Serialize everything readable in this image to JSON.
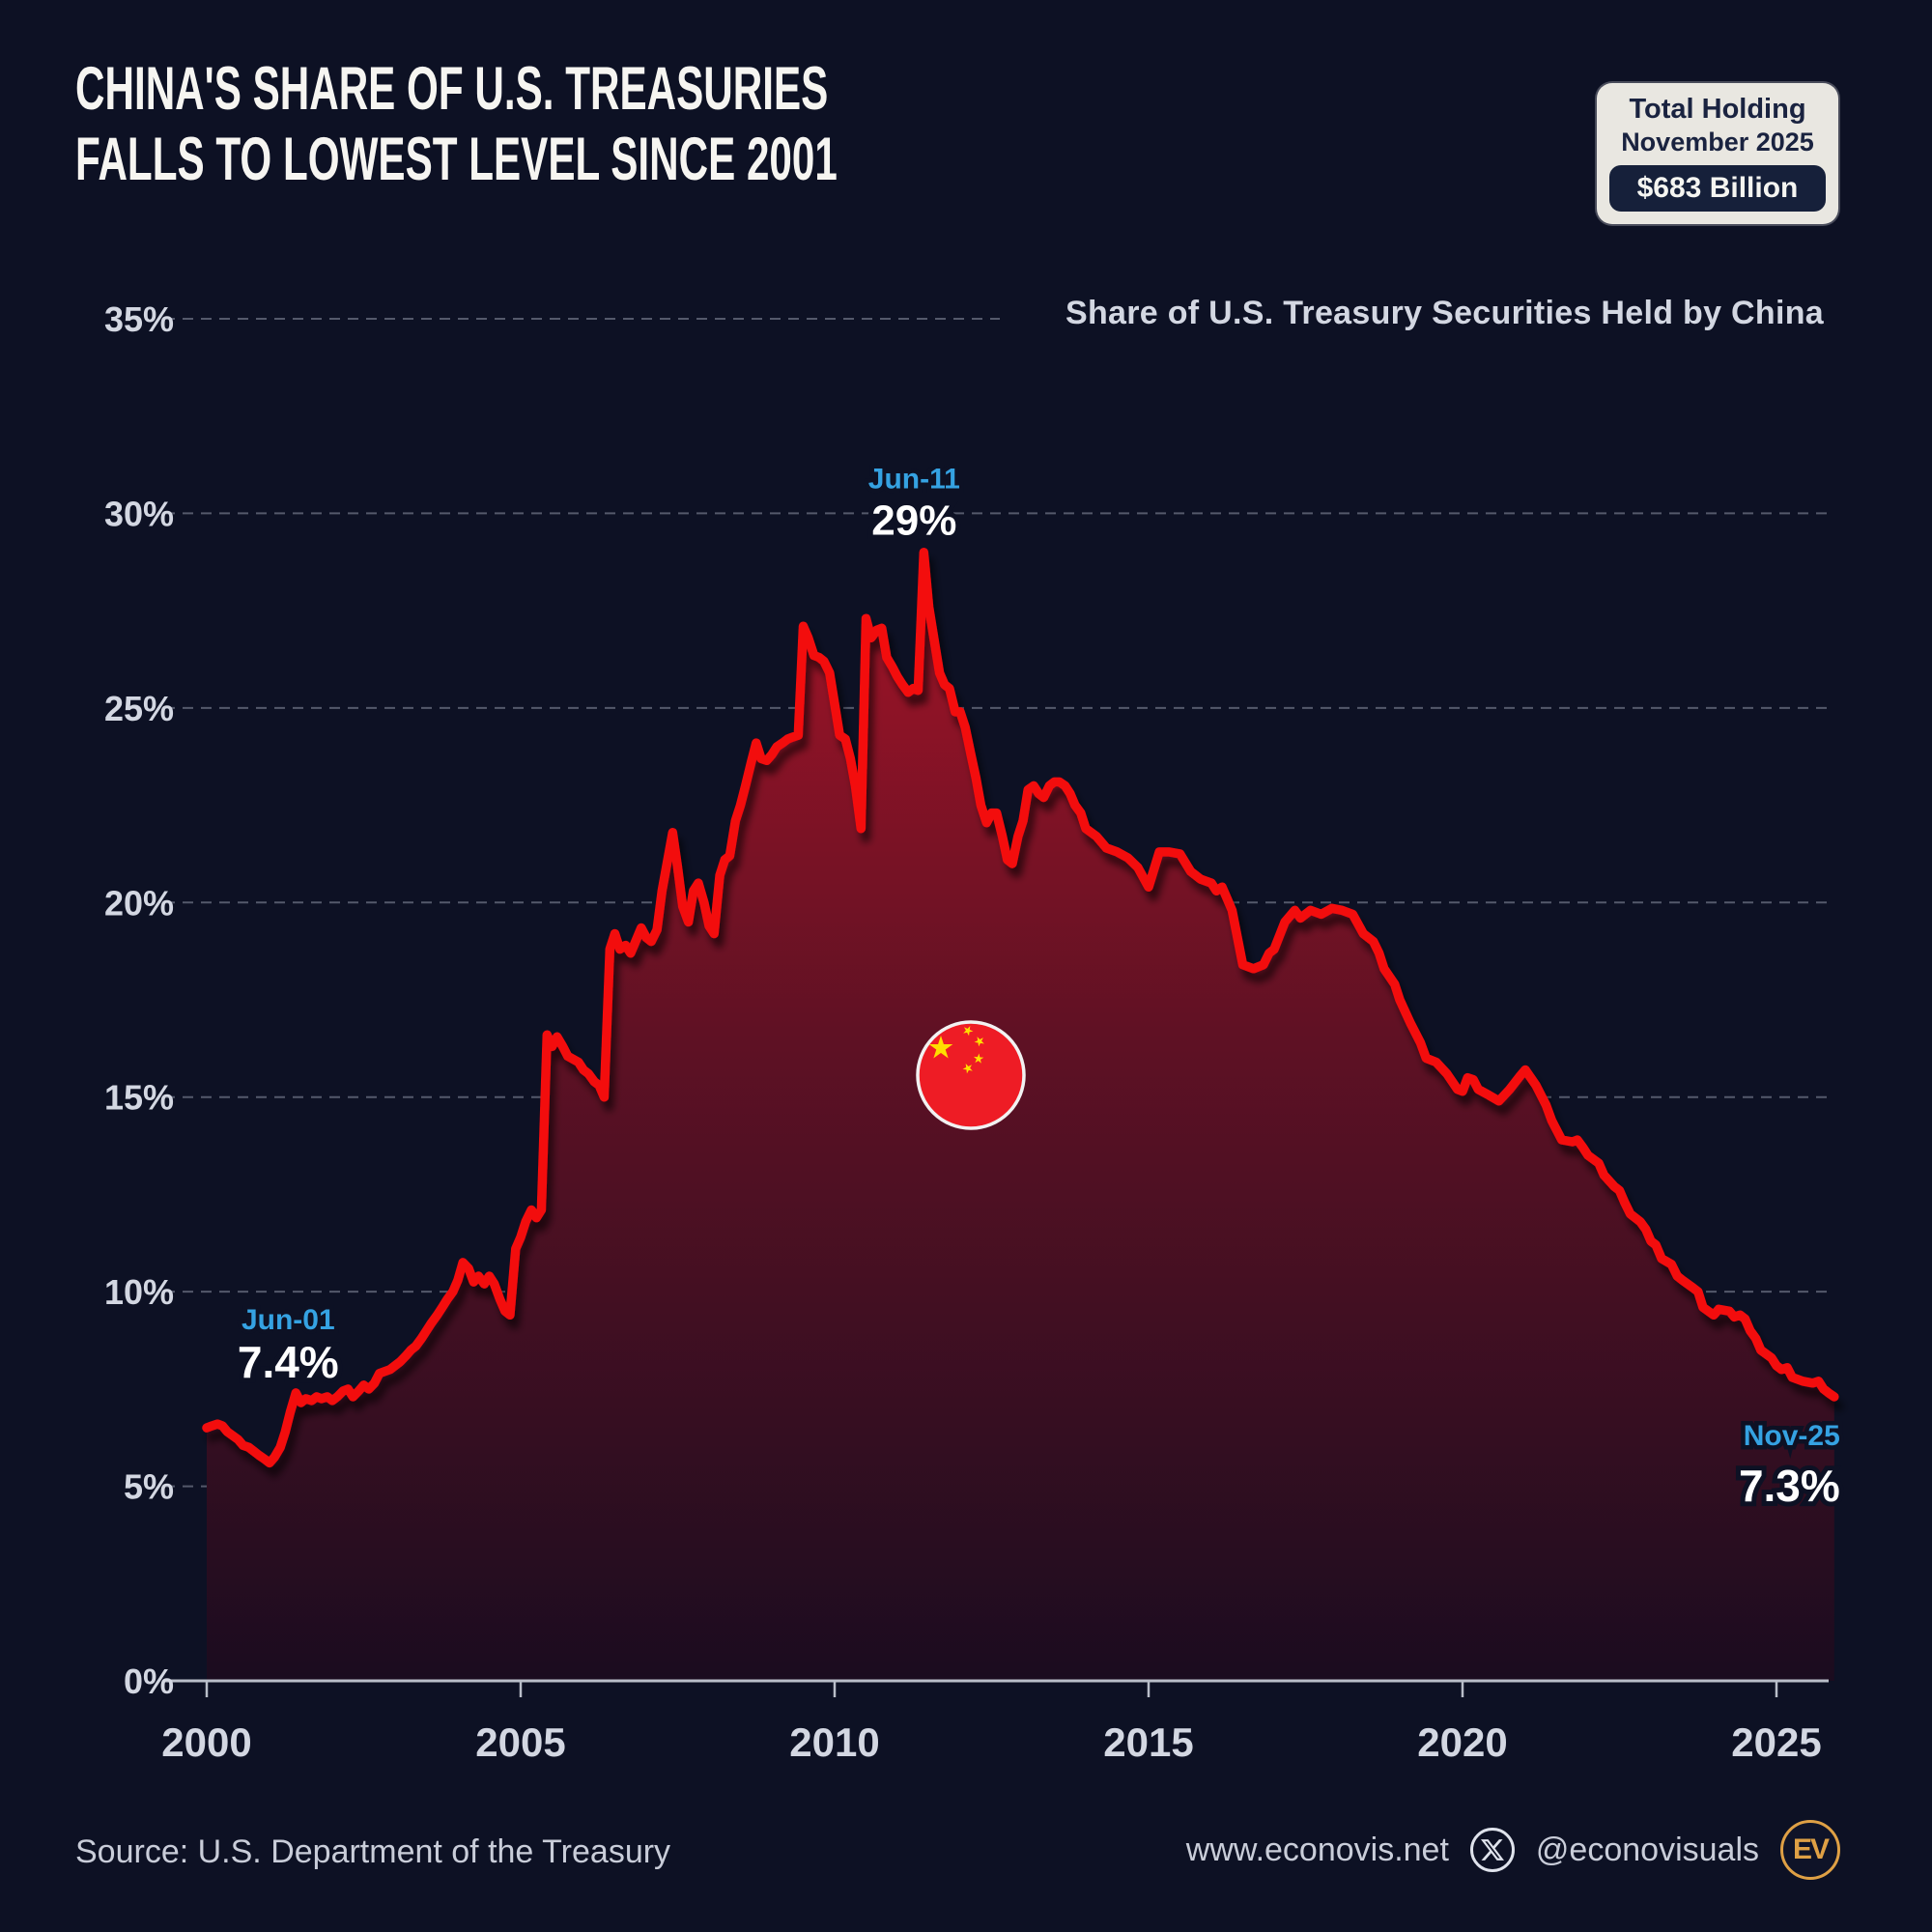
{
  "header": {
    "title_line1": "CHINA'S SHARE OF U.S. TREASURIES",
    "title_line2": "FALLS TO LOWEST LEVEL SINCE 2001",
    "badge": {
      "line1": "Total Holding",
      "line2": "November 2025",
      "value": "$683 Billion"
    }
  },
  "colors": {
    "background": "#0d1124",
    "line_red": "#f3090f",
    "area_top": "#a81427",
    "area_mid": "#5e1124",
    "area_bottom": "#1a0c1f",
    "accent_blue": "#35a2e2",
    "grid_gray": "#9aa0b2",
    "axis_gray": "#b9bec9",
    "gold": "#dfa045",
    "flag_red": "#ee1c25",
    "flag_yellow": "#ffde00",
    "text_bright": "#f6f5f1",
    "text_dim": "#d3d7e2"
  },
  "chart_data": {
    "type": "area",
    "title": "Share of U.S. Treasury Securities Held by China",
    "xlabel": "",
    "ylabel": "",
    "xlim": [
      2000,
      2026
    ],
    "ylim": [
      0,
      35
    ],
    "grid": "dashed-horizontal",
    "y_ticks": [
      "0%",
      "5%",
      "10%",
      "15%",
      "20%",
      "25%",
      "30%",
      "35%"
    ],
    "x_ticks": [
      "2000",
      "2005",
      "2010",
      "2015",
      "2020",
      "2025"
    ],
    "x_tick_years": [
      2000,
      2005,
      2010,
      2015,
      2020,
      2025
    ],
    "annotations": [
      {
        "label": "Jun-01",
        "value": "7.4%",
        "year": 2001.42,
        "y": 7.4
      },
      {
        "label": "Jun-11",
        "value": "29%",
        "year": 2011.42,
        "y": 29
      },
      {
        "label": "Nov-25",
        "value": "7.3%",
        "year": 2025.92,
        "y": 7.3
      }
    ],
    "series": [
      [
        2000.0,
        6.5
      ],
      [
        2000.08,
        6.55
      ],
      [
        2000.17,
        6.6
      ],
      [
        2000.25,
        6.55
      ],
      [
        2000.33,
        6.4
      ],
      [
        2000.5,
        6.2
      ],
      [
        2000.58,
        6.05
      ],
      [
        2000.67,
        6.0
      ],
      [
        2000.75,
        5.9
      ],
      [
        2000.83,
        5.8
      ],
      [
        2000.92,
        5.7
      ],
      [
        2001.0,
        5.6
      ],
      [
        2001.08,
        5.75
      ],
      [
        2001.17,
        6.0
      ],
      [
        2001.25,
        6.4
      ],
      [
        2001.33,
        6.9
      ],
      [
        2001.42,
        7.4
      ],
      [
        2001.5,
        7.15
      ],
      [
        2001.58,
        7.25
      ],
      [
        2001.67,
        7.2
      ],
      [
        2001.75,
        7.3
      ],
      [
        2001.83,
        7.25
      ],
      [
        2001.92,
        7.3
      ],
      [
        2002.0,
        7.2
      ],
      [
        2002.08,
        7.3
      ],
      [
        2002.17,
        7.45
      ],
      [
        2002.25,
        7.5
      ],
      [
        2002.33,
        7.3
      ],
      [
        2002.42,
        7.45
      ],
      [
        2002.5,
        7.6
      ],
      [
        2002.58,
        7.5
      ],
      [
        2002.67,
        7.65
      ],
      [
        2002.75,
        7.9
      ],
      [
        2002.92,
        8.0
      ],
      [
        2003.08,
        8.2
      ],
      [
        2003.17,
        8.35
      ],
      [
        2003.25,
        8.5
      ],
      [
        2003.33,
        8.6
      ],
      [
        2003.42,
        8.8
      ],
      [
        2003.5,
        9.0
      ],
      [
        2003.58,
        9.2
      ],
      [
        2003.67,
        9.4
      ],
      [
        2003.75,
        9.6
      ],
      [
        2003.83,
        9.8
      ],
      [
        2003.92,
        10.0
      ],
      [
        2004.0,
        10.3
      ],
      [
        2004.08,
        10.75
      ],
      [
        2004.17,
        10.6
      ],
      [
        2004.25,
        10.25
      ],
      [
        2004.33,
        10.4
      ],
      [
        2004.42,
        10.2
      ],
      [
        2004.5,
        10.4
      ],
      [
        2004.58,
        10.2
      ],
      [
        2004.67,
        9.8
      ],
      [
        2004.75,
        9.5
      ],
      [
        2004.83,
        9.4
      ],
      [
        2004.92,
        11.1
      ],
      [
        2005.0,
        11.4
      ],
      [
        2005.08,
        11.8
      ],
      [
        2005.17,
        12.1
      ],
      [
        2005.25,
        11.9
      ],
      [
        2005.33,
        12.1
      ],
      [
        2005.42,
        16.6
      ],
      [
        2005.5,
        16.3
      ],
      [
        2005.58,
        16.55
      ],
      [
        2005.67,
        16.3
      ],
      [
        2005.75,
        16.05
      ],
      [
        2005.92,
        15.9
      ],
      [
        2006.0,
        15.7
      ],
      [
        2006.08,
        15.6
      ],
      [
        2006.17,
        15.4
      ],
      [
        2006.25,
        15.3
      ],
      [
        2006.33,
        15.0
      ],
      [
        2006.42,
        18.8
      ],
      [
        2006.5,
        19.2
      ],
      [
        2006.58,
        18.8
      ],
      [
        2006.67,
        18.9
      ],
      [
        2006.75,
        18.7
      ],
      [
        2006.83,
        19.0
      ],
      [
        2006.92,
        19.35
      ],
      [
        2007.0,
        19.1
      ],
      [
        2007.08,
        19.0
      ],
      [
        2007.17,
        19.3
      ],
      [
        2007.25,
        20.3
      ],
      [
        2007.42,
        21.8
      ],
      [
        2007.5,
        20.9
      ],
      [
        2007.58,
        19.9
      ],
      [
        2007.67,
        19.5
      ],
      [
        2007.75,
        20.3
      ],
      [
        2007.83,
        20.5
      ],
      [
        2007.92,
        20.0
      ],
      [
        2008.0,
        19.4
      ],
      [
        2008.08,
        19.2
      ],
      [
        2008.17,
        20.7
      ],
      [
        2008.25,
        21.1
      ],
      [
        2008.33,
        21.2
      ],
      [
        2008.42,
        22.1
      ],
      [
        2008.5,
        22.5
      ],
      [
        2008.58,
        23.0
      ],
      [
        2008.67,
        23.6
      ],
      [
        2008.75,
        24.1
      ],
      [
        2008.83,
        23.7
      ],
      [
        2008.92,
        23.65
      ],
      [
        2009.0,
        23.8
      ],
      [
        2009.08,
        24.0
      ],
      [
        2009.17,
        24.1
      ],
      [
        2009.25,
        24.2
      ],
      [
        2009.33,
        24.25
      ],
      [
        2009.42,
        24.3
      ],
      [
        2009.5,
        27.1
      ],
      [
        2009.58,
        26.8
      ],
      [
        2009.67,
        26.35
      ],
      [
        2009.75,
        26.3
      ],
      [
        2009.83,
        26.2
      ],
      [
        2009.92,
        25.9
      ],
      [
        2010.0,
        25.1
      ],
      [
        2010.08,
        24.3
      ],
      [
        2010.17,
        24.2
      ],
      [
        2010.25,
        23.7
      ],
      [
        2010.33,
        23.0
      ],
      [
        2010.42,
        21.9
      ],
      [
        2010.5,
        27.3
      ],
      [
        2010.58,
        26.8
      ],
      [
        2010.67,
        27.0
      ],
      [
        2010.75,
        27.05
      ],
      [
        2010.83,
        26.3
      ],
      [
        2010.92,
        26.05
      ],
      [
        2011.0,
        25.8
      ],
      [
        2011.08,
        25.6
      ],
      [
        2011.17,
        25.4
      ],
      [
        2011.25,
        25.5
      ],
      [
        2011.33,
        25.45
      ],
      [
        2011.42,
        29.0
      ],
      [
        2011.5,
        27.6
      ],
      [
        2011.58,
        26.8
      ],
      [
        2011.67,
        25.9
      ],
      [
        2011.75,
        25.6
      ],
      [
        2011.83,
        25.5
      ],
      [
        2011.92,
        24.9
      ],
      [
        2012.0,
        24.9
      ],
      [
        2012.08,
        24.5
      ],
      [
        2012.17,
        23.8
      ],
      [
        2012.25,
        23.2
      ],
      [
        2012.33,
        22.5
      ],
      [
        2012.42,
        22.05
      ],
      [
        2012.5,
        22.3
      ],
      [
        2012.58,
        22.3
      ],
      [
        2012.67,
        21.7
      ],
      [
        2012.75,
        21.1
      ],
      [
        2012.83,
        21.0
      ],
      [
        2012.92,
        21.7
      ],
      [
        2013.0,
        22.1
      ],
      [
        2013.08,
        22.9
      ],
      [
        2013.17,
        23.0
      ],
      [
        2013.25,
        22.8
      ],
      [
        2013.33,
        22.7
      ],
      [
        2013.42,
        23.0
      ],
      [
        2013.5,
        23.1
      ],
      [
        2013.58,
        23.1
      ],
      [
        2013.67,
        23.0
      ],
      [
        2013.75,
        22.8
      ],
      [
        2013.83,
        22.5
      ],
      [
        2013.92,
        22.3
      ],
      [
        2014.0,
        21.9
      ],
      [
        2014.17,
        21.7
      ],
      [
        2014.33,
        21.4
      ],
      [
        2014.5,
        21.3
      ],
      [
        2014.67,
        21.15
      ],
      [
        2014.83,
        20.9
      ],
      [
        2015.0,
        20.4
      ],
      [
        2015.17,
        21.3
      ],
      [
        2015.33,
        21.3
      ],
      [
        2015.5,
        21.25
      ],
      [
        2015.67,
        20.8
      ],
      [
        2015.83,
        20.6
      ],
      [
        2016.0,
        20.5
      ],
      [
        2016.08,
        20.3
      ],
      [
        2016.17,
        20.4
      ],
      [
        2016.25,
        20.1
      ],
      [
        2016.33,
        19.8
      ],
      [
        2016.5,
        18.4
      ],
      [
        2016.67,
        18.3
      ],
      [
        2016.83,
        18.4
      ],
      [
        2016.92,
        18.7
      ],
      [
        2017.0,
        18.8
      ],
      [
        2017.17,
        19.5
      ],
      [
        2017.33,
        19.8
      ],
      [
        2017.42,
        19.6
      ],
      [
        2017.58,
        19.8
      ],
      [
        2017.75,
        19.7
      ],
      [
        2017.92,
        19.85
      ],
      [
        2018.08,
        19.8
      ],
      [
        2018.25,
        19.7
      ],
      [
        2018.42,
        19.2
      ],
      [
        2018.58,
        19.0
      ],
      [
        2018.67,
        18.7
      ],
      [
        2018.75,
        18.3
      ],
      [
        2018.92,
        17.9
      ],
      [
        2019.0,
        17.5
      ],
      [
        2019.17,
        16.9
      ],
      [
        2019.33,
        16.4
      ],
      [
        2019.42,
        16.0
      ],
      [
        2019.58,
        15.9
      ],
      [
        2019.75,
        15.6
      ],
      [
        2019.92,
        15.2
      ],
      [
        2020.0,
        15.15
      ],
      [
        2020.08,
        15.5
      ],
      [
        2020.17,
        15.45
      ],
      [
        2020.25,
        15.2
      ],
      [
        2020.42,
        15.05
      ],
      [
        2020.58,
        14.9
      ],
      [
        2020.75,
        15.2
      ],
      [
        2020.92,
        15.55
      ],
      [
        2021.0,
        15.7
      ],
      [
        2021.17,
        15.3
      ],
      [
        2021.33,
        14.8
      ],
      [
        2021.42,
        14.4
      ],
      [
        2021.58,
        13.9
      ],
      [
        2021.75,
        13.85
      ],
      [
        2021.83,
        13.9
      ],
      [
        2021.92,
        13.7
      ],
      [
        2022.0,
        13.5
      ],
      [
        2022.17,
        13.3
      ],
      [
        2022.25,
        13.0
      ],
      [
        2022.42,
        12.7
      ],
      [
        2022.5,
        12.6
      ],
      [
        2022.58,
        12.3
      ],
      [
        2022.67,
        12.0
      ],
      [
        2022.83,
        11.8
      ],
      [
        2022.92,
        11.6
      ],
      [
        2023.0,
        11.3
      ],
      [
        2023.08,
        11.2
      ],
      [
        2023.17,
        10.85
      ],
      [
        2023.33,
        10.7
      ],
      [
        2023.42,
        10.4
      ],
      [
        2023.5,
        10.3
      ],
      [
        2023.67,
        10.1
      ],
      [
        2023.75,
        10.0
      ],
      [
        2023.83,
        9.6
      ],
      [
        2024.0,
        9.4
      ],
      [
        2024.08,
        9.55
      ],
      [
        2024.25,
        9.5
      ],
      [
        2024.33,
        9.35
      ],
      [
        2024.42,
        9.4
      ],
      [
        2024.5,
        9.3
      ],
      [
        2024.58,
        9.0
      ],
      [
        2024.67,
        8.8
      ],
      [
        2024.75,
        8.5
      ],
      [
        2024.92,
        8.3
      ],
      [
        2025.0,
        8.1
      ],
      [
        2025.08,
        8.0
      ],
      [
        2025.17,
        8.05
      ],
      [
        2025.25,
        7.8
      ],
      [
        2025.42,
        7.7
      ],
      [
        2025.58,
        7.65
      ],
      [
        2025.67,
        7.7
      ],
      [
        2025.75,
        7.5
      ],
      [
        2025.83,
        7.4
      ],
      [
        2025.92,
        7.3
      ]
    ]
  },
  "footer": {
    "source": "Source: U.S. Department of the Treasury",
    "website": "www.econovis.net",
    "handle": "@econovisuals",
    "logo_text": "EV"
  }
}
